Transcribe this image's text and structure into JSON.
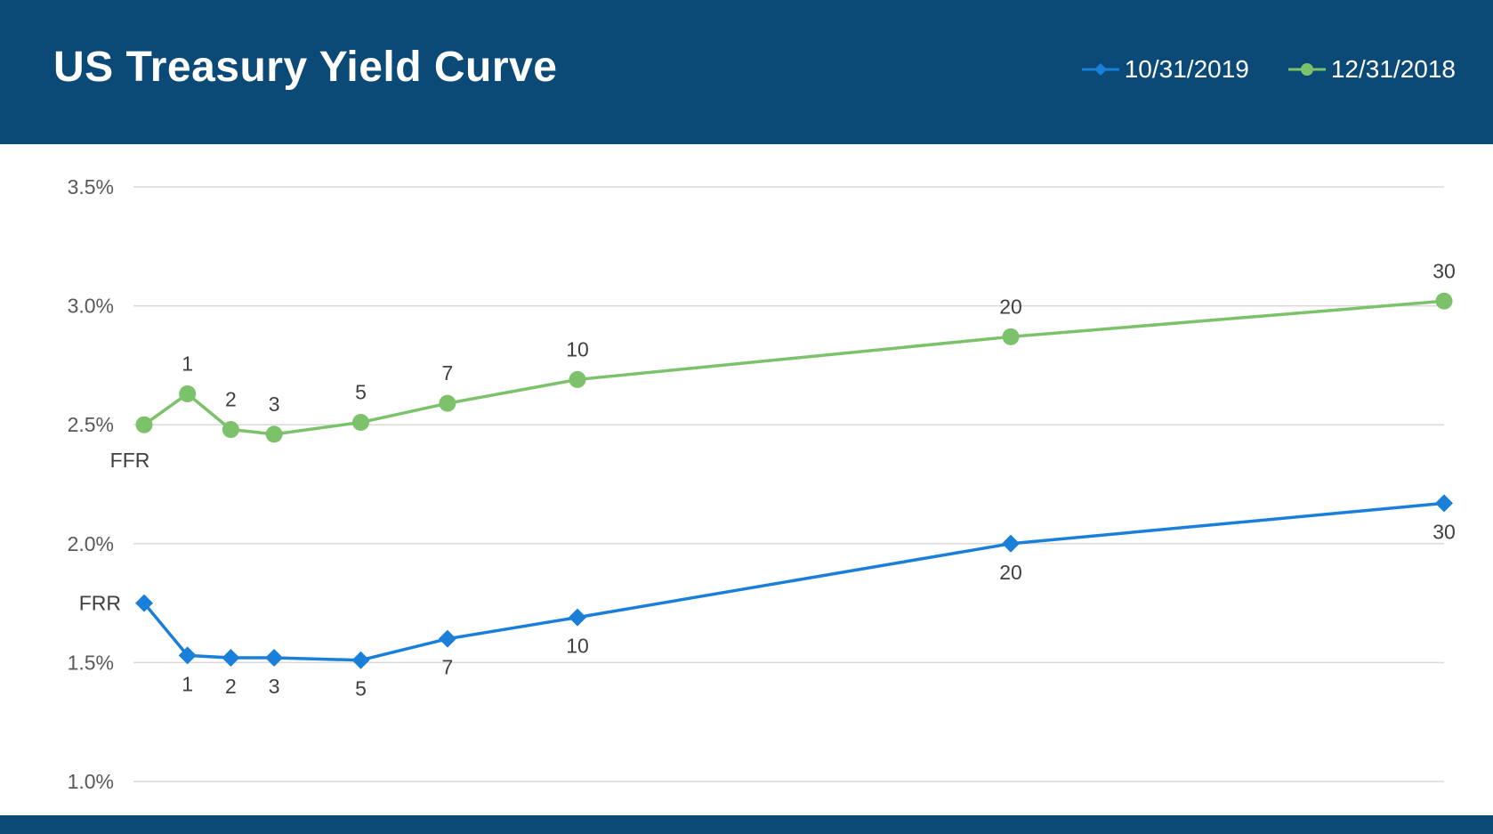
{
  "header": {
    "title": "US Treasury Yield Curve"
  },
  "colors": {
    "header_bg": "#0b4a77",
    "series_2019": "#1a7fd9",
    "series_2018": "#7cc26a",
    "grid": "#d9d9d9"
  },
  "chart_data": {
    "type": "line",
    "title": "US Treasury Yield Curve",
    "xlabel": "",
    "ylabel": "",
    "x_range": [
      0,
      30
    ],
    "ylim": [
      1.0,
      3.5
    ],
    "yticks": [
      1.0,
      1.5,
      2.0,
      2.5,
      3.0,
      3.5
    ],
    "ytick_labels": [
      "1.0%",
      "1.5%",
      "2.0%",
      "2.5%",
      "3.0%",
      "3.5%"
    ],
    "grid": true,
    "legend_position": "top-right",
    "series": [
      {
        "name": "10/31/2019",
        "marker": "diamond",
        "color": "#1a7fd9",
        "label_position": "below",
        "points": [
          {
            "x": 0,
            "y": 1.75,
            "label": "FRR"
          },
          {
            "x": 1,
            "y": 1.53,
            "label": "1"
          },
          {
            "x": 2,
            "y": 1.52,
            "label": "2"
          },
          {
            "x": 3,
            "y": 1.52,
            "label": "3"
          },
          {
            "x": 5,
            "y": 1.51,
            "label": "5"
          },
          {
            "x": 7,
            "y": 1.6,
            "label": "7"
          },
          {
            "x": 10,
            "y": 1.69,
            "label": "10"
          },
          {
            "x": 20,
            "y": 2.0,
            "label": "20"
          },
          {
            "x": 30,
            "y": 2.17,
            "label": "30"
          }
        ]
      },
      {
        "name": "12/31/2018",
        "marker": "circle",
        "color": "#7cc26a",
        "label_position": "above",
        "points": [
          {
            "x": 0,
            "y": 2.5,
            "label": "FFR"
          },
          {
            "x": 1,
            "y": 2.63,
            "label": "1"
          },
          {
            "x": 2,
            "y": 2.48,
            "label": "2"
          },
          {
            "x": 3,
            "y": 2.46,
            "label": "3"
          },
          {
            "x": 5,
            "y": 2.51,
            "label": "5"
          },
          {
            "x": 7,
            "y": 2.59,
            "label": "7"
          },
          {
            "x": 10,
            "y": 2.69,
            "label": "10"
          },
          {
            "x": 20,
            "y": 2.87,
            "label": "20"
          },
          {
            "x": 30,
            "y": 3.02,
            "label": "30"
          }
        ]
      }
    ]
  }
}
